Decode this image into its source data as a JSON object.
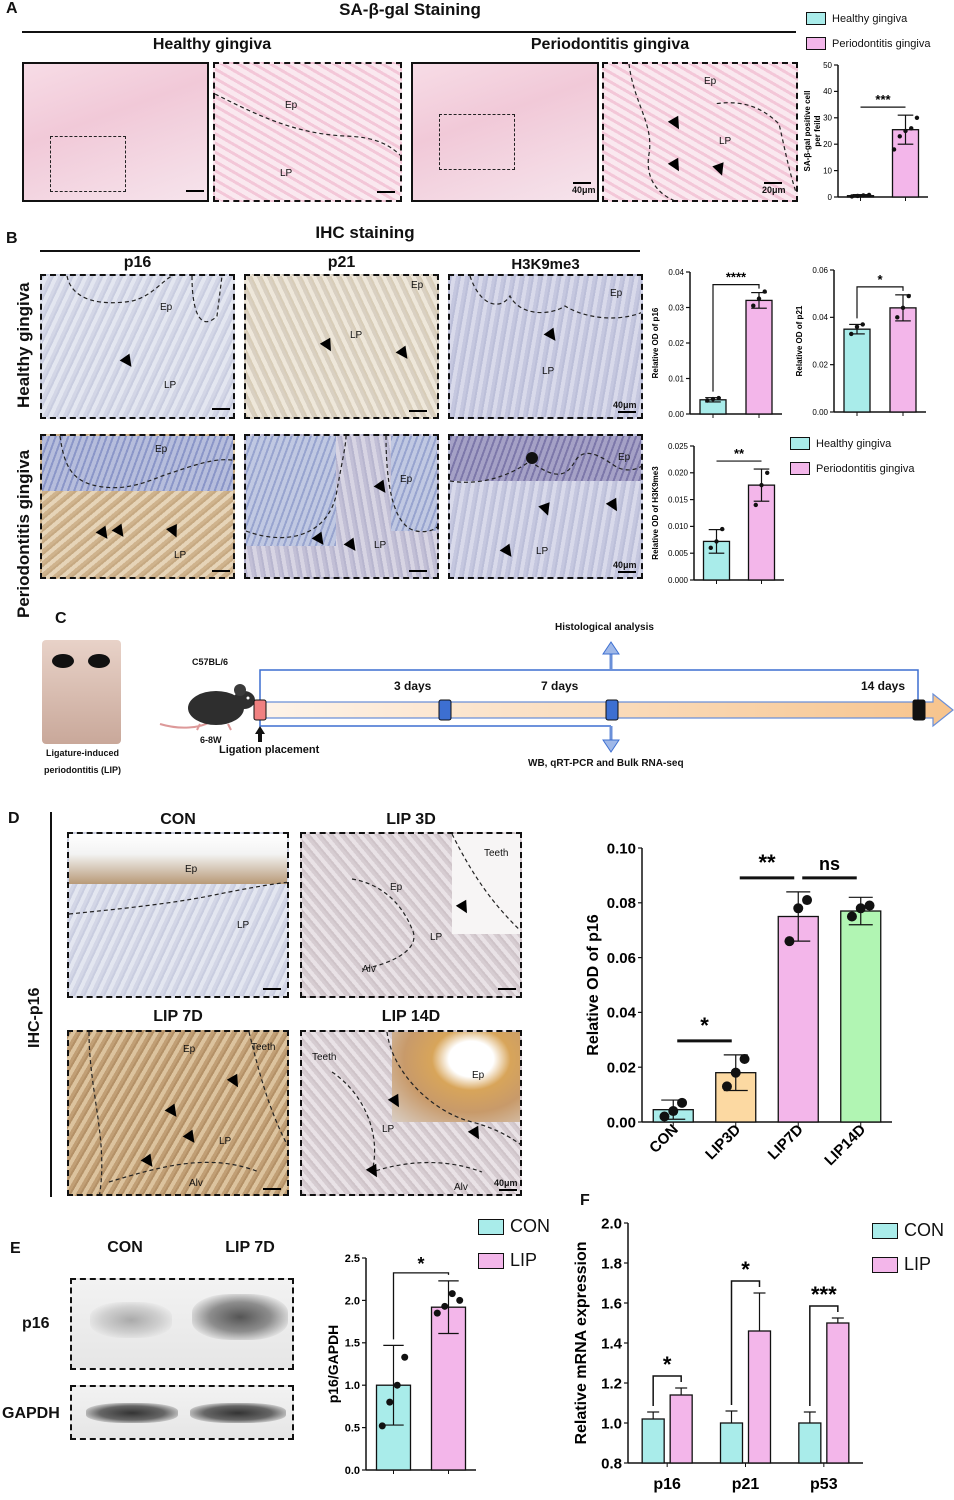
{
  "panels": {
    "A": {
      "label": "A",
      "title": "SA-β-gal Staining",
      "healthy": "Healthy gingiva",
      "perio": "Periodontitis gingiva",
      "img_labels": {
        "ep": "Ep",
        "lp": "LP",
        "scale40": "40μm",
        "scale20": "20μm"
      }
    },
    "B": {
      "label": "B",
      "title": "IHC staining",
      "cols": [
        "p16",
        "p21",
        "H3K9me3"
      ],
      "rows": [
        "Healthy gingiva",
        "Periodontitis gingiva"
      ],
      "img_labels": {
        "ep": "Ep",
        "lp": "LP",
        "scale40": "40μm"
      }
    },
    "C": {
      "label": "C",
      "photo_caption_1": "Ligature-induced",
      "photo_caption_2": "periodontitis (LIP)",
      "mouse_strain": "C57BL/6",
      "mouse_age": "6-8W",
      "ligation": "Ligation placement",
      "hist": "Histological analysis",
      "wb": "WB, qRT-PCR and Bulk RNA-seq",
      "d3": "3 days",
      "d7": "7 days",
      "d14": "14 days"
    },
    "D": {
      "label": "D",
      "side": "IHC-p16",
      "images": [
        "CON",
        "LIP 3D",
        "LIP 7D",
        "LIP 14D"
      ],
      "img_labels": {
        "ep": "Ep",
        "lp": "LP",
        "alv": "Alv",
        "teeth": "Teeth",
        "scale40": "40μm"
      }
    },
    "E": {
      "label": "E",
      "con": "CON",
      "lip7": "LIP 7D",
      "p16": "p16",
      "gapdh": "GAPDH"
    },
    "F": {
      "label": "F"
    }
  },
  "legend": {
    "healthy": "Healthy gingiva",
    "perio": "Periodontitis gingiva",
    "con": "CON",
    "lip": "LIP"
  },
  "colors": {
    "cyan": "#a9ecea",
    "pink": "#f3b6ea",
    "orange": "#fcd9a2",
    "green": "#b1f5b3",
    "tl_start": "#f08080",
    "tl_node": "#3d6fd1",
    "tl_end": "#111111"
  },
  "chart_data": [
    {
      "id": "A-sabgal",
      "type": "bar",
      "categories": [
        "",
        ""
      ],
      "values": [
        0.5,
        25.5
      ],
      "errors": [
        0.4,
        5.5
      ],
      "points": [
        [
          0.2,
          0.4,
          0.6,
          0.8
        ],
        [
          18,
          23,
          25,
          26,
          30
        ]
      ],
      "ylabel": "SA-β-gal positive cell per feild",
      "ylim": [
        0,
        50
      ],
      "yticks": [
        0,
        10,
        20,
        30,
        40,
        50
      ],
      "sig": "***",
      "colors": [
        "#a9ecea",
        "#f3b6ea"
      ]
    },
    {
      "id": "B-p16",
      "type": "bar",
      "categories": [
        "",
        ""
      ],
      "values": [
        0.004,
        0.032
      ],
      "errors": [
        0.0006,
        0.0022
      ],
      "points": [
        [
          0.0038,
          0.0042,
          0.0045
        ],
        [
          0.0305,
          0.0325,
          0.0345
        ]
      ],
      "ylabel": "Relative OD of p16",
      "ylim": [
        0,
        0.04
      ],
      "yticks": [
        0.0,
        0.01,
        0.02,
        0.03,
        0.04
      ],
      "sig": "****",
      "colors": [
        "#a9ecea",
        "#f3b6ea"
      ]
    },
    {
      "id": "B-p21",
      "type": "bar",
      "categories": [
        "",
        ""
      ],
      "values": [
        0.035,
        0.044
      ],
      "errors": [
        0.002,
        0.0055
      ],
      "points": [
        [
          0.033,
          0.036,
          0.037
        ],
        [
          0.04,
          0.044,
          0.049
        ]
      ],
      "ylabel": "Relative OD of p21",
      "ylim": [
        0,
        0.06
      ],
      "yticks": [
        0.0,
        0.02,
        0.04,
        0.06
      ],
      "sig": "*",
      "colors": [
        "#a9ecea",
        "#f3b6ea"
      ]
    },
    {
      "id": "B-h3k9",
      "type": "bar",
      "categories": [
        "",
        ""
      ],
      "values": [
        0.0072,
        0.0177
      ],
      "errors": [
        0.0022,
        0.003
      ],
      "points": [
        [
          0.006,
          0.0072,
          0.0095
        ],
        [
          0.014,
          0.0177,
          0.02
        ]
      ],
      "ylabel": "Relative OD of H3K9me3",
      "ylim": [
        0,
        0.025
      ],
      "yticks": [
        0.0,
        0.005,
        0.01,
        0.015,
        0.02,
        0.025
      ],
      "sig": "**",
      "colors": [
        "#a9ecea",
        "#f3b6ea"
      ]
    },
    {
      "id": "D-p16",
      "type": "bar",
      "categories": [
        "CON",
        "LIP3D",
        "LIP7D",
        "LIP14D"
      ],
      "values": [
        0.0045,
        0.018,
        0.075,
        0.077
      ],
      "errors": [
        0.0035,
        0.0065,
        0.009,
        0.005
      ],
      "points": [
        [
          0.002,
          0.004,
          0.007
        ],
        [
          0.013,
          0.018,
          0.023
        ],
        [
          0.066,
          0.078,
          0.081
        ],
        [
          0.075,
          0.078,
          0.079
        ]
      ],
      "ylabel": "Relative OD of p16",
      "ylim": [
        0,
        0.1
      ],
      "yticks": [
        0.0,
        0.02,
        0.04,
        0.06,
        0.08,
        0.1
      ],
      "sig": [
        {
          "pair": [
            0,
            1
          ],
          "text": "*"
        },
        {
          "pair": [
            1,
            2
          ],
          "text": "**"
        },
        {
          "pair": [
            2,
            3
          ],
          "text": "ns"
        }
      ],
      "colors": [
        "#a9ecea",
        "#fcd9a2",
        "#f3b6ea",
        "#b1f5b3"
      ]
    },
    {
      "id": "E-p16gapdh",
      "type": "bar",
      "categories": [
        "",
        ""
      ],
      "values": [
        1.0,
        1.92
      ],
      "errors": [
        0.47,
        0.31
      ],
      "points": [
        [
          0.52,
          0.8,
          1.0,
          1.33
        ],
        [
          1.85,
          1.93,
          2.08,
          2.0
        ]
      ],
      "ylabel": "p16/GAPDH",
      "ylim": [
        0,
        2.5
      ],
      "yticks": [
        0.0,
        0.5,
        1.0,
        1.5,
        2.0,
        2.5
      ],
      "sig": "*",
      "colors": [
        "#a9ecea",
        "#f3b6ea"
      ]
    },
    {
      "id": "F-mrna",
      "type": "bar",
      "categories": [
        "p16",
        "p21",
        "p53"
      ],
      "series": [
        {
          "name": "CON",
          "values": [
            1.02,
            1.0,
            1.0
          ],
          "errors": [
            0.035,
            0.06,
            0.055
          ]
        },
        {
          "name": "LIP",
          "values": [
            1.14,
            1.46,
            1.5
          ],
          "errors": [
            0.035,
            0.19,
            0.025
          ]
        }
      ],
      "ylabel": "Relative mRNA expression",
      "ylim": [
        0.8,
        2.0
      ],
      "yticks": [
        0.8,
        1.0,
        1.2,
        1.4,
        1.6,
        1.8,
        2.0
      ],
      "sig": [
        "*",
        "*",
        "***"
      ],
      "colors": [
        "#a9ecea",
        "#f3b6ea"
      ]
    }
  ]
}
